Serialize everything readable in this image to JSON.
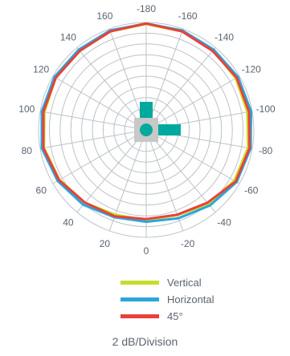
{
  "chart_data": {
    "type": "polar",
    "angles_deg": [
      0,
      20,
      40,
      60,
      80,
      100,
      120,
      140,
      160,
      -180,
      -160,
      -140,
      -120,
      -100,
      -80,
      -60,
      -40,
      -20
    ],
    "angle_labels": [
      "0",
      "20",
      "40",
      "60",
      "80",
      "100",
      "120",
      "140",
      "160",
      "-180",
      "-160",
      "-140",
      "-120",
      "-100",
      "-80",
      "-60",
      "-40",
      "-20"
    ],
    "rings": 10,
    "grid": true,
    "series": [
      {
        "name": "Vertical",
        "color": "#c8dc2a",
        "values": [
          -3.2,
          -3.2,
          -2.3,
          -1.4,
          -0.7,
          -0.8,
          -0.6,
          -0.8,
          -0.5,
          -0.3,
          -0.5,
          -0.6,
          -0.8,
          -0.9,
          -0.8,
          -1.1,
          -2.0,
          -3.1
        ]
      },
      {
        "name": "Horizontal",
        "color": "#2aa6dc",
        "values": [
          -2.9,
          -2.7,
          -1.8,
          -1.0,
          -0.3,
          -0.3,
          -0.3,
          -0.5,
          -0.3,
          -0.2,
          -0.3,
          -0.5,
          -0.3,
          -0.2,
          -0.3,
          -0.6,
          -1.6,
          -2.5
        ]
      },
      {
        "name": "45°",
        "color": "#e8413a",
        "values": [
          -3.4,
          -2.9,
          -2.3,
          -1.3,
          -0.6,
          -0.6,
          -0.6,
          -0.8,
          -0.5,
          -0.2,
          -0.5,
          -0.8,
          -0.6,
          -0.6,
          -0.5,
          -0.8,
          -2.3,
          -3.2
        ]
      }
    ],
    "colors": {
      "grid": "#bcc2c8",
      "axis_text": "#5a6470",
      "icon_gray": "#c8c8c8",
      "icon_teal": "#00a99d"
    }
  },
  "legend": [
    {
      "label": "Vertical",
      "color": "#c8dc2a"
    },
    {
      "label": "Horizontal",
      "color": "#2aa6dc"
    },
    {
      "label": "45°",
      "color": "#e8413a"
    }
  ],
  "caption": "2 dB/Division"
}
